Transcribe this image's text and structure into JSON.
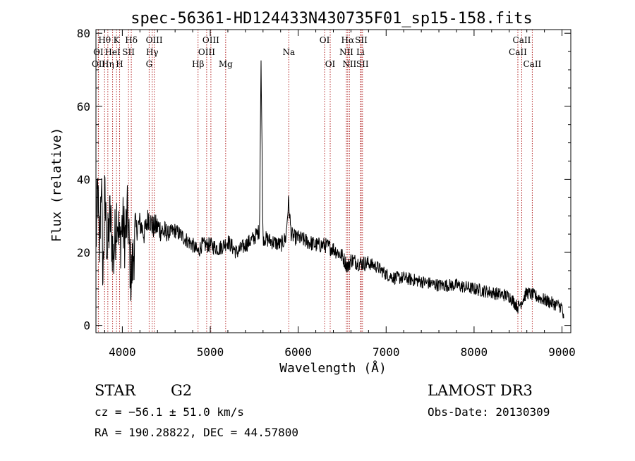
{
  "chart_data": {
    "type": "line",
    "title": "spec-56361-HD124433N430735F01_sp15-158.fits",
    "xlabel": "Wavelength (Å)",
    "ylabel": "Flux (relative)",
    "xlim": [
      3700,
      9100
    ],
    "ylim": [
      -2,
      81
    ],
    "x_ticks": [
      4000,
      5000,
      6000,
      7000,
      8000,
      9000
    ],
    "y_ticks": [
      0,
      20,
      40,
      60,
      80
    ],
    "spectrum_anchors": {
      "x": [
        3700,
        3720,
        3740,
        3760,
        3780,
        3800,
        3830,
        3860,
        3900,
        3940,
        3970,
        4000,
        4030,
        4060,
        4100,
        4150,
        4200,
        4250,
        4300,
        4340,
        4400,
        4500,
        4600,
        4700,
        4800,
        4860,
        4900,
        5000,
        5100,
        5200,
        5300,
        5400,
        5500,
        5560,
        5577,
        5600,
        5700,
        5800,
        5860,
        5890,
        5920,
        5960,
        6000,
        6100,
        6200,
        6300,
        6400,
        6500,
        6563,
        6600,
        6700,
        6800,
        6900,
        7000,
        7100,
        7200,
        7400,
        7600,
        7800,
        8000,
        8200,
        8400,
        8500,
        8600,
        8700,
        8800,
        8900,
        9000,
        9020
      ],
      "y": [
        22,
        38,
        18,
        42,
        12,
        35,
        20,
        30,
        18,
        32,
        22,
        28,
        24,
        30,
        12,
        26,
        28,
        25,
        30,
        27,
        27,
        25,
        26,
        24,
        22,
        20,
        22,
        22,
        21,
        23,
        20,
        22,
        24,
        26,
        73,
        24,
        23,
        22,
        24,
        34,
        25,
        24,
        24,
        23,
        22,
        22,
        21,
        19,
        16,
        18,
        17,
        17,
        16,
        14,
        13,
        13,
        12,
        11,
        11,
        10,
        9,
        8,
        5,
        9,
        8,
        7,
        6,
        5,
        1
      ]
    },
    "lines": [
      {
        "label": "Hθ",
        "wavelength": 3798,
        "row": 1
      },
      {
        "label": "K",
        "wavelength": 3934,
        "row": 1
      },
      {
        "label": "Hδ",
        "wavelength": 4102,
        "row": 1
      },
      {
        "label": "OIII",
        "wavelength": 4363,
        "row": 1
      },
      {
        "label": "OIII",
        "wavelength": 5007,
        "row": 1
      },
      {
        "label": "OI",
        "wavelength": 6300,
        "row": 1
      },
      {
        "label": "Hα",
        "wavelength": 6563,
        "row": 1
      },
      {
        "label": "SII",
        "wavelength": 6717,
        "row": 1
      },
      {
        "label": "CaII",
        "wavelength": 8542,
        "row": 1
      },
      {
        "label": "OI",
        "wavelength": 3727,
        "row": 2
      },
      {
        "label": "HeI",
        "wavelength": 3889,
        "row": 2
      },
      {
        "label": "SII",
        "wavelength": 4070,
        "row": 2
      },
      {
        "label": "Hγ",
        "wavelength": 4340,
        "row": 2
      },
      {
        "label": "OIII",
        "wavelength": 4959,
        "row": 2
      },
      {
        "label": "Na",
        "wavelength": 5893,
        "row": 2
      },
      {
        "label": "NII",
        "wavelength": 6548,
        "row": 2
      },
      {
        "label": "Li",
        "wavelength": 6708,
        "row": 2
      },
      {
        "label": "CaII",
        "wavelength": 8498,
        "row": 2
      },
      {
        "label": "OII",
        "wavelength": 3729,
        "row": 3
      },
      {
        "label": "Hη",
        "wavelength": 3835,
        "row": 3
      },
      {
        "label": "H",
        "wavelength": 3969,
        "row": 3
      },
      {
        "label": "G",
        "wavelength": 4305,
        "row": 3
      },
      {
        "label": "Hβ",
        "wavelength": 4861,
        "row": 3
      },
      {
        "label": "Mg",
        "wavelength": 5175,
        "row": 3
      },
      {
        "label": "OI",
        "wavelength": 6364,
        "row": 3
      },
      {
        "label": "NII",
        "wavelength": 6583,
        "row": 3
      },
      {
        "label": "SII",
        "wavelength": 6731,
        "row": 3
      },
      {
        "label": "CaII",
        "wavelength": 8662,
        "row": 3
      }
    ]
  },
  "info": {
    "object_class": "STAR",
    "subclass": "G2",
    "survey": "LAMOST DR3",
    "redshift": "cz = −56.1 ± 51.0 km/s",
    "obs_date": "Obs-Date: 20130309",
    "coords": "RA = 190.28822, DEC =  44.57800"
  },
  "colors": {
    "line_marker": "#b22222",
    "spectrum": "#000000"
  }
}
